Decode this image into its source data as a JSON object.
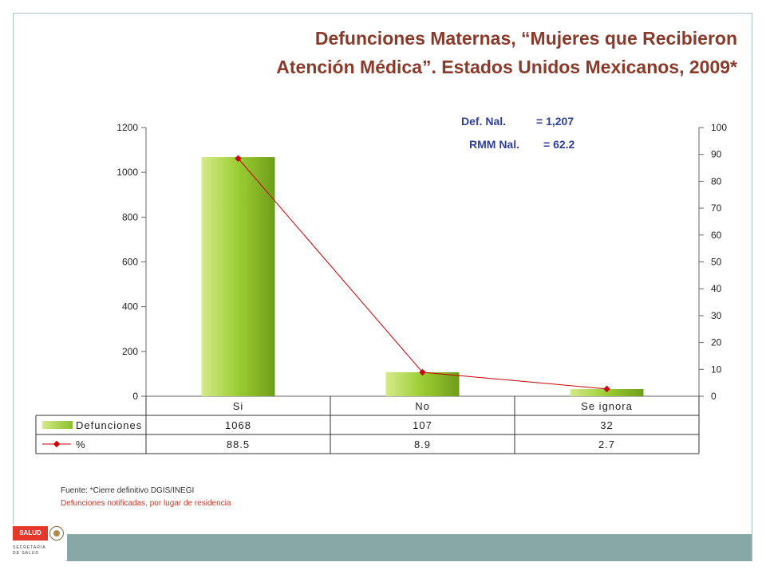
{
  "header": {
    "title_line1": "Defunciones Maternas, “Mujeres que Recibieron",
    "title_line2": "Atención Médica”.  Estados Unidos Mexicanos, 2009*"
  },
  "stats": {
    "def_label": "Def. Nal.",
    "def_value": "= 1,207",
    "rmm_label": "RMM Nal.",
    "rmm_value": "= 62.2"
  },
  "footer": {
    "source": "Fuente: *Cierre definitivo DGIS/INEGI",
    "note": "Defunciones notificadas, por lugar de residencia"
  },
  "logo": {
    "badge": "SALUD",
    "line1": "SECRETARÍA",
    "line2": "DE SALUD"
  },
  "colors": {
    "bar_green": "#9acd32",
    "line_red": "#cc0000",
    "title": "#8b3a2a",
    "stats": "#2f3f9f",
    "band": "#88a8a8"
  },
  "chart_data": {
    "type": "bar",
    "categories": [
      "Si",
      "No",
      "Se ignora"
    ],
    "series": [
      {
        "name": "Defunciones",
        "type": "bar",
        "axis": "left",
        "values": [
          1068,
          107,
          32
        ]
      },
      {
        "name": "%",
        "type": "line",
        "axis": "right",
        "values": [
          88.5,
          8.9,
          2.7
        ]
      }
    ],
    "left_axis": {
      "min": 0,
      "max": 1200,
      "ticks": [
        0,
        200,
        400,
        600,
        800,
        1000,
        1200
      ]
    },
    "right_axis": {
      "min": 0,
      "max": 100,
      "ticks": [
        0,
        10,
        20,
        30,
        40,
        50,
        60,
        70,
        80,
        90,
        100
      ]
    },
    "table": {
      "rows": [
        {
          "label": "Defunciones",
          "values": [
            "1068",
            "107",
            "32"
          ]
        },
        {
          "label": "%",
          "values": [
            "88.5",
            "8.9",
            "2.7"
          ]
        }
      ]
    },
    "grid": false
  }
}
